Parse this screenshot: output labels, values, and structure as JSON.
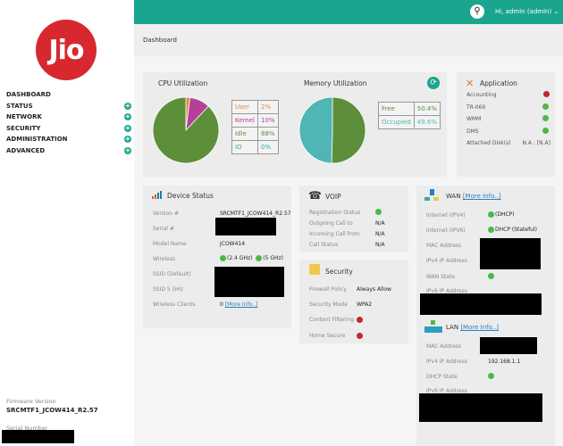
{
  "sidebar": {
    "logo": "Jio",
    "items": [
      {
        "label": "DASHBOARD",
        "expandable": false
      },
      {
        "label": "STATUS",
        "expandable": true
      },
      {
        "label": "NETWORK",
        "expandable": true
      },
      {
        "label": "SECURITY",
        "expandable": true
      },
      {
        "label": "ADMINISTRATION",
        "expandable": true
      },
      {
        "label": "ADVANCED",
        "expandable": true
      }
    ],
    "firmware_label": "Firmware Version",
    "firmware_value": "SRCMTF1_JCOW414_R2.57",
    "serial_label": "Serial Number"
  },
  "header": {
    "user": "Hi, admin (admin)",
    "search_icon": "search-icon",
    "chevron": "⌄"
  },
  "page_title": "Dashboard",
  "colors": {
    "accent": "#1aa58e",
    "brand": "#d7282f"
  },
  "cpu": {
    "title": "CPU Utilization",
    "rows": [
      {
        "label": "User",
        "value": "2%",
        "pct": 2,
        "color": "#e88a3a"
      },
      {
        "label": "Kernel",
        "value": "10%",
        "pct": 10,
        "color": "#b5409a"
      },
      {
        "label": "Idle",
        "value": "88%",
        "pct": 88,
        "color": "#5d8f3a"
      },
      {
        "label": "IO",
        "value": "0%",
        "pct": 0,
        "color": "#3aa6a6"
      }
    ]
  },
  "memory": {
    "title": "Memory Utilization",
    "rows": [
      {
        "label": "Free",
        "value": "50.4%",
        "pct": 50.4,
        "color": "#5d8f3a"
      },
      {
        "label": "Occupied",
        "value": "49.6%",
        "pct": 49.6,
        "color": "#4fb5b5"
      }
    ]
  },
  "application": {
    "title": "Application",
    "rows": [
      {
        "label": "Accounting",
        "status": "bad"
      },
      {
        "label": "TR-069",
        "status": "ok"
      },
      {
        "label": "WMM",
        "status": "ok"
      },
      {
        "label": "DMS",
        "status": "ok"
      },
      {
        "label": "Attached Disk(s)",
        "text": "N.A : [N.A]"
      }
    ]
  },
  "device": {
    "title": "Device Status",
    "version_label": "Version #",
    "version": "SRCMTF1_JCOW414_R2.57",
    "serial_label": "Serial #",
    "model_label": "Model Name",
    "model": "JCOW414",
    "wireless_label": "Wireless",
    "w24": "(2.4 GHz)",
    "w5": "(5 GHz)",
    "ssid_label": "SSID (Default)",
    "ssid5_label": "SSID 5 GHz",
    "clients_label": "Wireless Clients",
    "clients": "0",
    "more": "[More Info..]"
  },
  "voip": {
    "title": "VOIP",
    "reg_label": "Registration Status",
    "out_label": "Outgoing Call to",
    "out": "N/A",
    "in_label": "Incoming Call from",
    "in": "N/A",
    "status_label": "Call Status",
    "status": "N/A"
  },
  "security": {
    "title": "Security",
    "fw_label": "Firewall Policy",
    "fw": "Always Allow",
    "mode_label": "Security Mode",
    "mode": "WPA2",
    "cf_label": "Content Filtering",
    "hs_label": "Home Secure"
  },
  "wan": {
    "title": "WAN",
    "more": "[More Info..]",
    "ipv4_label": "Internet (IPV4)",
    "ipv4": "(DHCP)",
    "ipv6_label": "Internet (IPV6)",
    "ipv6": "DHCP (Stateful)",
    "mac_label": "MAC Address",
    "ip_label": "IPv4 IP Address",
    "state_label": "WAN State",
    "ip6_label": "IPv6 IP Address"
  },
  "lan": {
    "title": "LAN",
    "more": "[More Info..]",
    "mac_label": "MAC Address",
    "ip_label": "IPv4 IP Address",
    "ip": "192.168.1.1",
    "dhcp_label": "DHCP State",
    "ip6_label": "IPv6 IP Address"
  }
}
